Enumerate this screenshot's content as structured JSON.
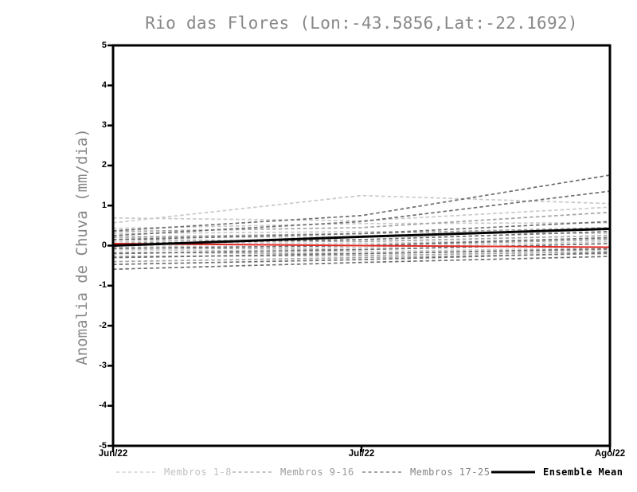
{
  "title": "Rio das Flores (Lon:-43.5856,Lat:-22.1692)",
  "y_axis": {
    "label": "Anomalia de Chuva (mm/dia)",
    "ticks": [
      "5",
      "4",
      "3",
      "2",
      "1",
      "0",
      "-1",
      "-2",
      "-3",
      "-4",
      "-5"
    ]
  },
  "x_axis": {
    "labels": [
      "Jun/22",
      "Jul/22",
      "Ago/22"
    ]
  },
  "legend": [
    {
      "label": "Membros 1-8",
      "color": "#c9c9c9",
      "text_color": "#c2c2c2",
      "style": "dashed"
    },
    {
      "label": "Membros 9-16",
      "color": "#a3a3a3",
      "text_color": "#9b9b9b",
      "style": "dashed"
    },
    {
      "label": "Membros 17-25",
      "color": "#6e6e6e",
      "text_color": "#858585",
      "style": "dashed"
    },
    {
      "label": "Ensemble Mean",
      "color": "#000000",
      "text_color": "#000000",
      "style": "solid"
    }
  ],
  "colors": {
    "axis": "#000000",
    "title_text": "#878787",
    "reference_line": "#e02a25",
    "ensemble_mean": "#000000"
  },
  "chart_data": {
    "type": "line",
    "title": "Rio das Flores (Lon:-43.5856,Lat:-22.1692)",
    "xlabel": "",
    "ylabel": "Anomalia de Chuva (mm/dia)",
    "x_categories": [
      "Jun/22",
      "Jul/22",
      "Ago/22"
    ],
    "ylim": [
      -5,
      5
    ],
    "y_tick_step": 1,
    "grid": false,
    "legend_position": "bottom",
    "series_groups": [
      {
        "name": "Membros 1-8",
        "color": "#c9c9c9",
        "line_style": "dashed",
        "members": [
          [
            0.69,
            0.62,
            0.96
          ],
          [
            0.57,
            1.25,
            1.05
          ],
          [
            0.43,
            0.55,
            0.57
          ],
          [
            0.3,
            0.35,
            0.3
          ],
          [
            0.2,
            0.22,
            0.4
          ],
          [
            0.1,
            0.05,
            0.18
          ],
          [
            0.0,
            -0.05,
            0.1
          ],
          [
            -0.1,
            -0.15,
            -0.05
          ]
        ]
      },
      {
        "name": "Membros 9-16",
        "color": "#a3a3a3",
        "line_style": "dashed",
        "members": [
          [
            0.35,
            0.45,
            0.83
          ],
          [
            0.21,
            0.3,
            0.45
          ],
          [
            0.15,
            0.1,
            0.25
          ],
          [
            0.05,
            0.0,
            0.15
          ],
          [
            -0.05,
            -0.1,
            0.05
          ],
          [
            -0.17,
            -0.2,
            -0.1
          ],
          [
            -0.27,
            -0.25,
            -0.15
          ],
          [
            -0.4,
            -0.3,
            -0.2
          ]
        ]
      },
      {
        "name": "Membros 17-25",
        "color": "#6e6e6e",
        "line_style": "dashed",
        "members": [
          [
            0.37,
            0.75,
            1.76
          ],
          [
            0.25,
            0.6,
            1.36
          ],
          [
            0.15,
            0.3,
            0.6
          ],
          [
            0.05,
            0.15,
            0.35
          ],
          [
            -0.07,
            0.0,
            0.2
          ],
          [
            -0.2,
            -0.1,
            0.05
          ],
          [
            -0.3,
            -0.2,
            -0.08
          ],
          [
            -0.47,
            -0.35,
            -0.18
          ],
          [
            -0.59,
            -0.42,
            -0.27
          ]
        ]
      }
    ],
    "ensemble_mean": {
      "name": "Ensemble Mean",
      "color": "#000000",
      "values": [
        0.0,
        0.22,
        0.42
      ]
    },
    "reference_line": {
      "name": "zero-reference",
      "color": "#e02a25",
      "values": [
        0.05,
        0.0,
        -0.04
      ]
    }
  }
}
